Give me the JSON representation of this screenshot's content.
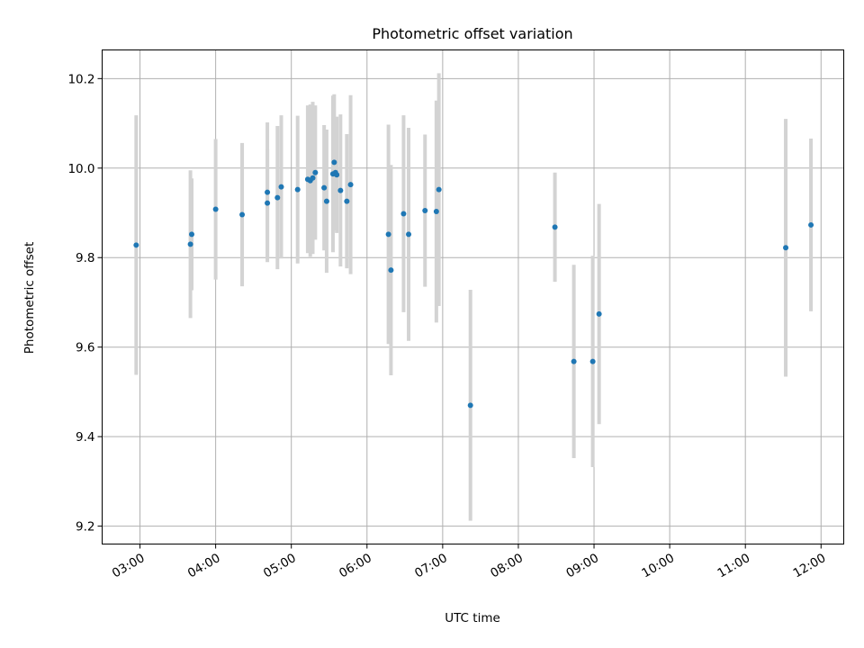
{
  "chart_data": {
    "type": "scatter",
    "title": "Photometric offset variation",
    "xlabel": "UTC time",
    "ylabel": "Photometric offset",
    "x_unit": "time of day (UTC)",
    "xlim": [
      "02:30",
      "12:18"
    ],
    "ylim": [
      9.16,
      10.264
    ],
    "x_ticks": [
      "03:00",
      "04:00",
      "05:00",
      "06:00",
      "07:00",
      "08:00",
      "09:00",
      "10:00",
      "11:00",
      "12:00"
    ],
    "y_ticks": [
      "9.2",
      "9.4",
      "9.6",
      "9.8",
      "10.0",
      "10.2"
    ],
    "grid": true,
    "legend": "none",
    "point_color": "#1f77b4",
    "errorbar_color": "#d3d3d3",
    "series": [
      {
        "points": [
          {
            "x": "02:57",
            "y": 9.828,
            "err": 0.29
          },
          {
            "x": "03:40",
            "y": 9.83,
            "err": 0.165
          },
          {
            "x": "03:41",
            "y": 9.852,
            "err": 0.125
          },
          {
            "x": "04:00",
            "y": 9.908,
            "err": 0.157
          },
          {
            "x": "04:21",
            "y": 9.896,
            "err": 0.16
          },
          {
            "x": "04:41",
            "y": 9.946,
            "err": 0.156
          },
          {
            "x": "04:41",
            "y": 9.922,
            "err": 0.12
          },
          {
            "x": "04:49",
            "y": 9.934,
            "err": 0.16
          },
          {
            "x": "04:52",
            "y": 9.958,
            "err": 0.16
          },
          {
            "x": "05:05",
            "y": 9.952,
            "err": 0.165
          },
          {
            "x": "05:13",
            "y": 9.975,
            "err": 0.165
          },
          {
            "x": "05:15",
            "y": 9.972,
            "err": 0.17
          },
          {
            "x": "05:17",
            "y": 9.978,
            "err": 0.17
          },
          {
            "x": "05:19",
            "y": 9.99,
            "err": 0.15
          },
          {
            "x": "05:26",
            "y": 9.956,
            "err": 0.14
          },
          {
            "x": "05:28",
            "y": 9.926,
            "err": 0.16
          },
          {
            "x": "05:33",
            "y": 9.987,
            "err": 0.175
          },
          {
            "x": "05:34",
            "y": 10.013,
            "err": 0.152
          },
          {
            "x": "05:35",
            "y": 9.99,
            "err": 0.12
          },
          {
            "x": "05:36",
            "y": 9.985,
            "err": 0.13
          },
          {
            "x": "05:39",
            "y": 9.95,
            "err": 0.17
          },
          {
            "x": "05:44",
            "y": 9.926,
            "err": 0.15
          },
          {
            "x": "05:47",
            "y": 9.963,
            "err": 0.2
          },
          {
            "x": "06:17",
            "y": 9.852,
            "err": 0.245
          },
          {
            "x": "06:19",
            "y": 9.772,
            "err": 0.235
          },
          {
            "x": "06:29",
            "y": 9.898,
            "err": 0.22
          },
          {
            "x": "06:33",
            "y": 9.852,
            "err": 0.238
          },
          {
            "x": "06:46",
            "y": 9.905,
            "err": 0.17
          },
          {
            "x": "06:55",
            "y": 9.903,
            "err": 0.248
          },
          {
            "x": "06:57",
            "y": 9.952,
            "err": 0.26
          },
          {
            "x": "07:22",
            "y": 9.47,
            "err": 0.258
          },
          {
            "x": "08:29",
            "y": 9.868,
            "err": 0.122
          },
          {
            "x": "08:44",
            "y": 9.568,
            "err": 0.216
          },
          {
            "x": "08:59",
            "y": 9.568,
            "err": 0.236
          },
          {
            "x": "09:04",
            "y": 9.674,
            "err": 0.246
          },
          {
            "x": "11:32",
            "y": 9.822,
            "err": 0.288
          },
          {
            "x": "11:52",
            "y": 9.873,
            "err": 0.193
          }
        ]
      }
    ]
  }
}
